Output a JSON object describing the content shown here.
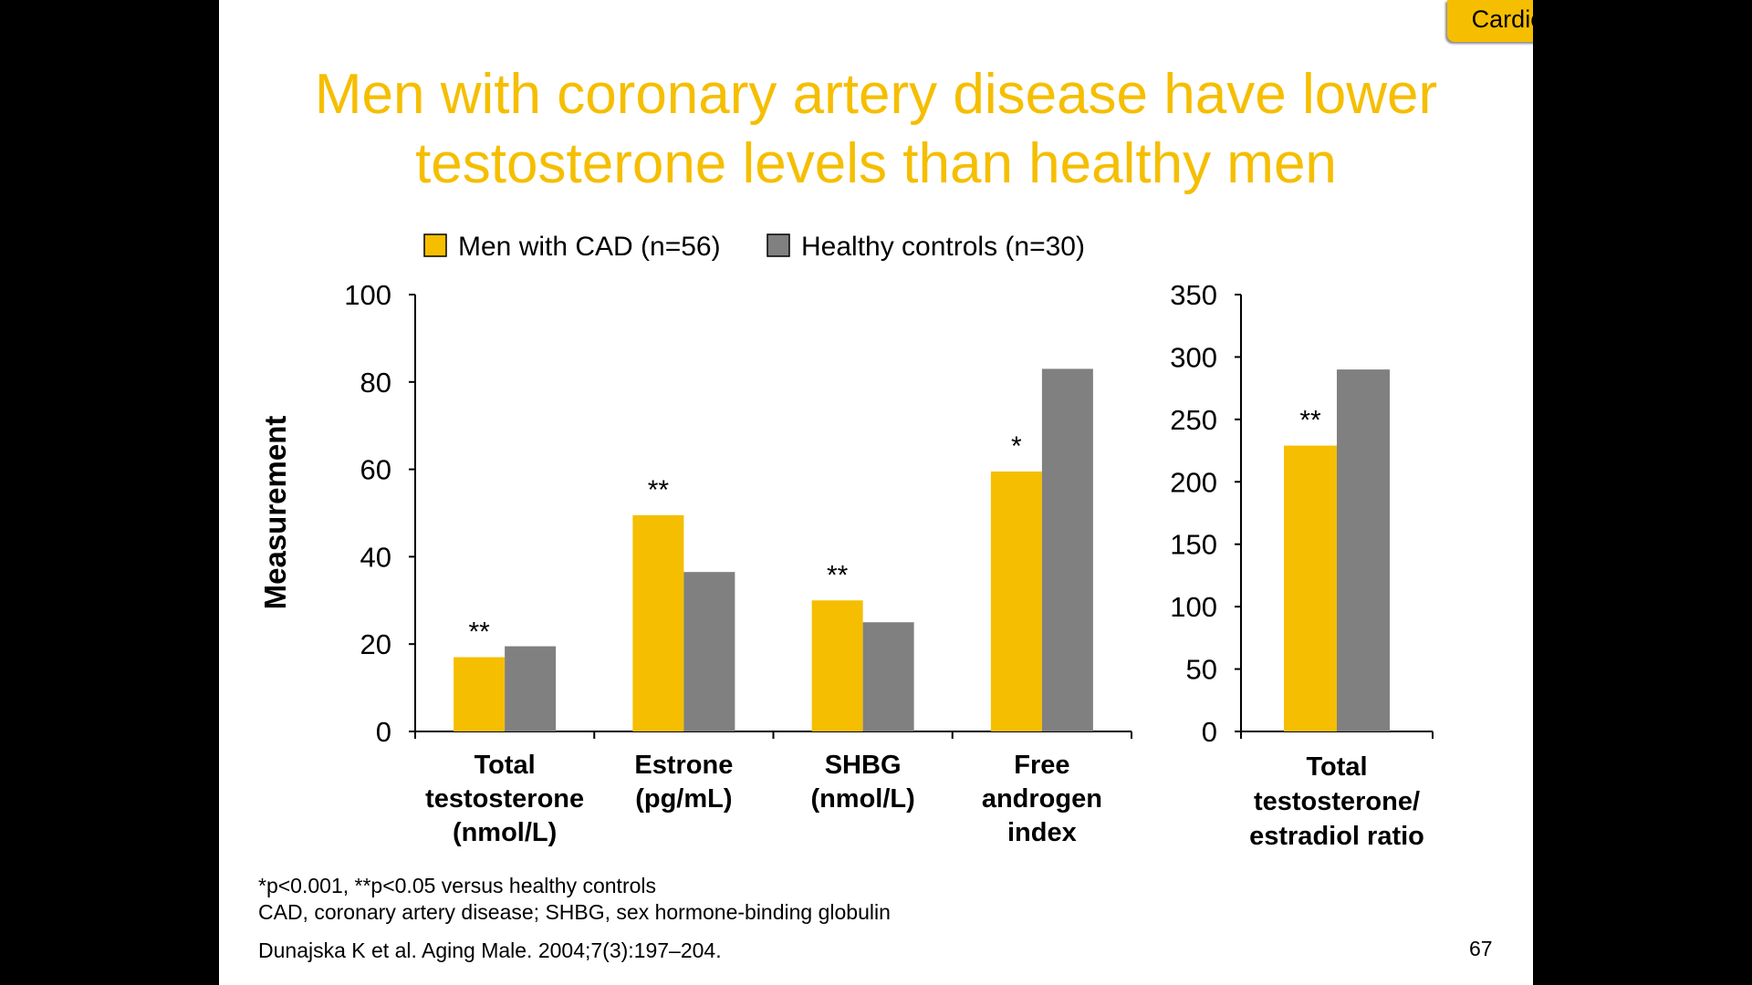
{
  "header": {
    "tag": "Cardiovascular disease",
    "title_lines": [
      "Men with coronary artery disease have lower",
      "testosterone levels than healthy men"
    ]
  },
  "colors": {
    "cad": "#F5BE00",
    "controls": "#808080",
    "title": "#F5BE00"
  },
  "chart_data": [
    {
      "type": "bar",
      "ylabel": "Measurement",
      "ylim": [
        0,
        100
      ],
      "yticks": [
        0,
        20,
        40,
        60,
        80,
        100
      ],
      "categories": [
        [
          "Total",
          "testosterone",
          "(nmol/L)"
        ],
        [
          "Estrone",
          "(pg/mL)"
        ],
        [
          "SHBG",
          "(nmol/L)"
        ],
        [
          "Free",
          "androgen",
          "index"
        ]
      ],
      "series": [
        {
          "name": "Men with CAD (n=56)",
          "values": [
            17,
            49.5,
            30,
            59.5
          ],
          "annotations": [
            "**",
            "**",
            "**",
            "*"
          ]
        },
        {
          "name": "Healthy controls (n=30)",
          "values": [
            19.5,
            36.5,
            25,
            83
          ]
        }
      ],
      "legend": "top",
      "grid": false
    },
    {
      "type": "bar",
      "ylim": [
        0,
        350
      ],
      "yticks": [
        0,
        50,
        100,
        150,
        200,
        250,
        300,
        350
      ],
      "categories": [
        [
          "Total",
          "testosterone/",
          "estradiol ratio"
        ]
      ],
      "series": [
        {
          "name": "Men with CAD (n=56)",
          "values": [
            229
          ],
          "annotations": [
            "**"
          ]
        },
        {
          "name": "Healthy controls (n=30)",
          "values": [
            290
          ]
        }
      ],
      "grid": false
    }
  ],
  "footnotes": {
    "significance": "*p<0.001, **p<0.05 versus healthy controls",
    "abbreviations": "CAD, coronary artery disease; SHBG, sex hormone-binding globulin",
    "reference": "Dunajska K et al. Aging Male. 2004;7(3):197–204."
  },
  "page_number": "67"
}
